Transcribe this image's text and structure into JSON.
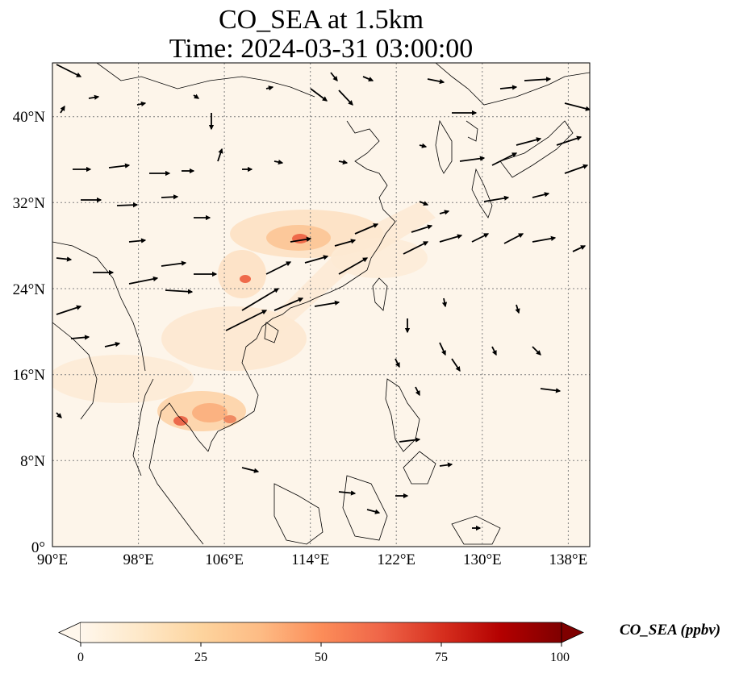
{
  "title_line1": "CO_SEA at 1.5km",
  "title_line2": "Time: 2024-03-31 03:00:00",
  "map": {
    "lon_range": [
      90,
      140
    ],
    "lat_range": [
      0,
      45
    ],
    "x_ticks": [
      "90°E",
      "98°E",
      "106°E",
      "114°E",
      "122°E",
      "130°E",
      "138°E"
    ],
    "y_ticks": [
      "0°",
      "8°N",
      "16°N",
      "24°N",
      "32°N",
      "40°N"
    ],
    "gridlines": "dotted",
    "colors": {
      "background": "#fdf5ea",
      "coastline": "#000000",
      "grid": "#808080"
    }
  },
  "colorbar": {
    "label": "CO_SEA (ppbv)",
    "ticks": [
      "0",
      "25",
      "50",
      "75",
      "100"
    ],
    "range": [
      0,
      100
    ],
    "extend": "both",
    "colormap": "OrRd",
    "colors": [
      "#fff7ec",
      "#fee8c8",
      "#fdd49e",
      "#fdbb84",
      "#fc8d59",
      "#ef6548",
      "#d7301f",
      "#b30000",
      "#7f0000"
    ]
  }
}
